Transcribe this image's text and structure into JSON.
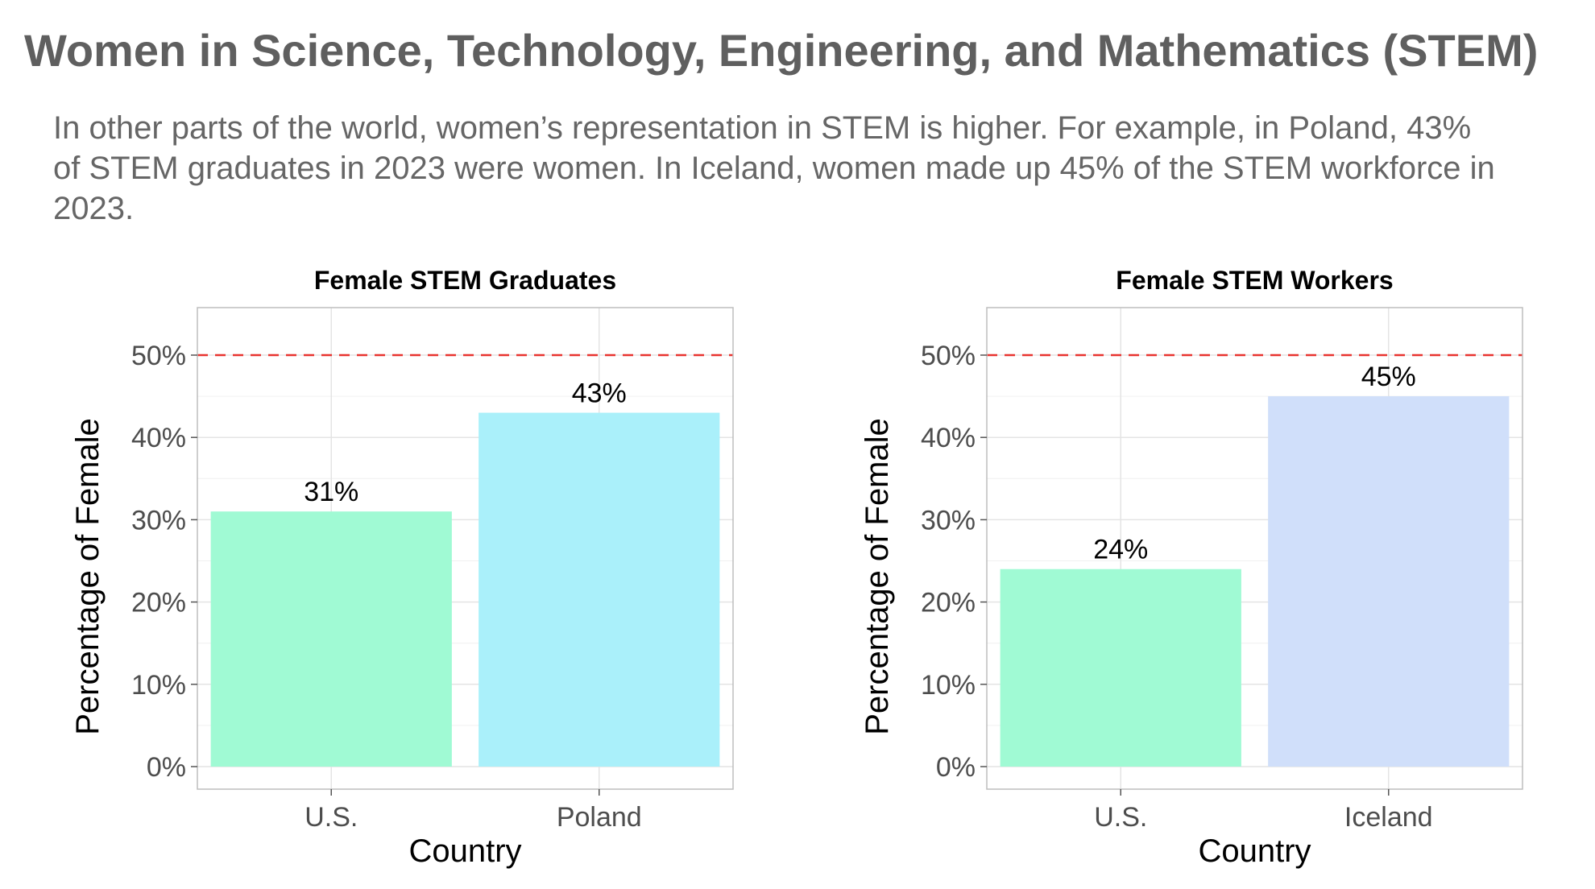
{
  "page": {
    "title": "Women in Science, Technology, Engineering, and Mathematics (STEM)",
    "subtitle": "In other parts of the world, women’s representation in STEM is higher. For example, in Poland, 43% of STEM graduates in 2023 were women. In Iceland, women made up 45% of the STEM workforce in 2023."
  },
  "colors": {
    "us_bar": "#a0fad4",
    "poland_bar": "#aaf0fa",
    "iceland_bar": "#d0dffa",
    "reference_line": "#e8332f",
    "grid": "#e4e4e4",
    "panel_border": "#bdbdbd"
  },
  "chart_data": [
    {
      "type": "bar",
      "title": "Female STEM Graduates",
      "xlabel": "Country",
      "ylabel": "Percentage of Female",
      "categories": [
        "U.S.",
        "Poland"
      ],
      "values": [
        31,
        43
      ],
      "value_labels": [
        "31%",
        "43%"
      ],
      "bar_colors": [
        "#a0fad4",
        "#aaf0fa"
      ],
      "ylim": [
        0,
        55
      ],
      "yticks": [
        0,
        10,
        20,
        30,
        40,
        50
      ],
      "ytick_labels": [
        "0%",
        "10%",
        "20%",
        "30%",
        "40%",
        "50%"
      ],
      "reference_line": 50,
      "grid": true
    },
    {
      "type": "bar",
      "title": "Female STEM Workers",
      "xlabel": "Country",
      "ylabel": "Percentage of Female",
      "categories": [
        "U.S.",
        "Iceland"
      ],
      "values": [
        24,
        45
      ],
      "value_labels": [
        "24%",
        "45%"
      ],
      "bar_colors": [
        "#a0fad4",
        "#d0dffa"
      ],
      "ylim": [
        0,
        55
      ],
      "yticks": [
        0,
        10,
        20,
        30,
        40,
        50
      ],
      "ytick_labels": [
        "0%",
        "10%",
        "20%",
        "30%",
        "40%",
        "50%"
      ],
      "reference_line": 50,
      "grid": true
    }
  ]
}
